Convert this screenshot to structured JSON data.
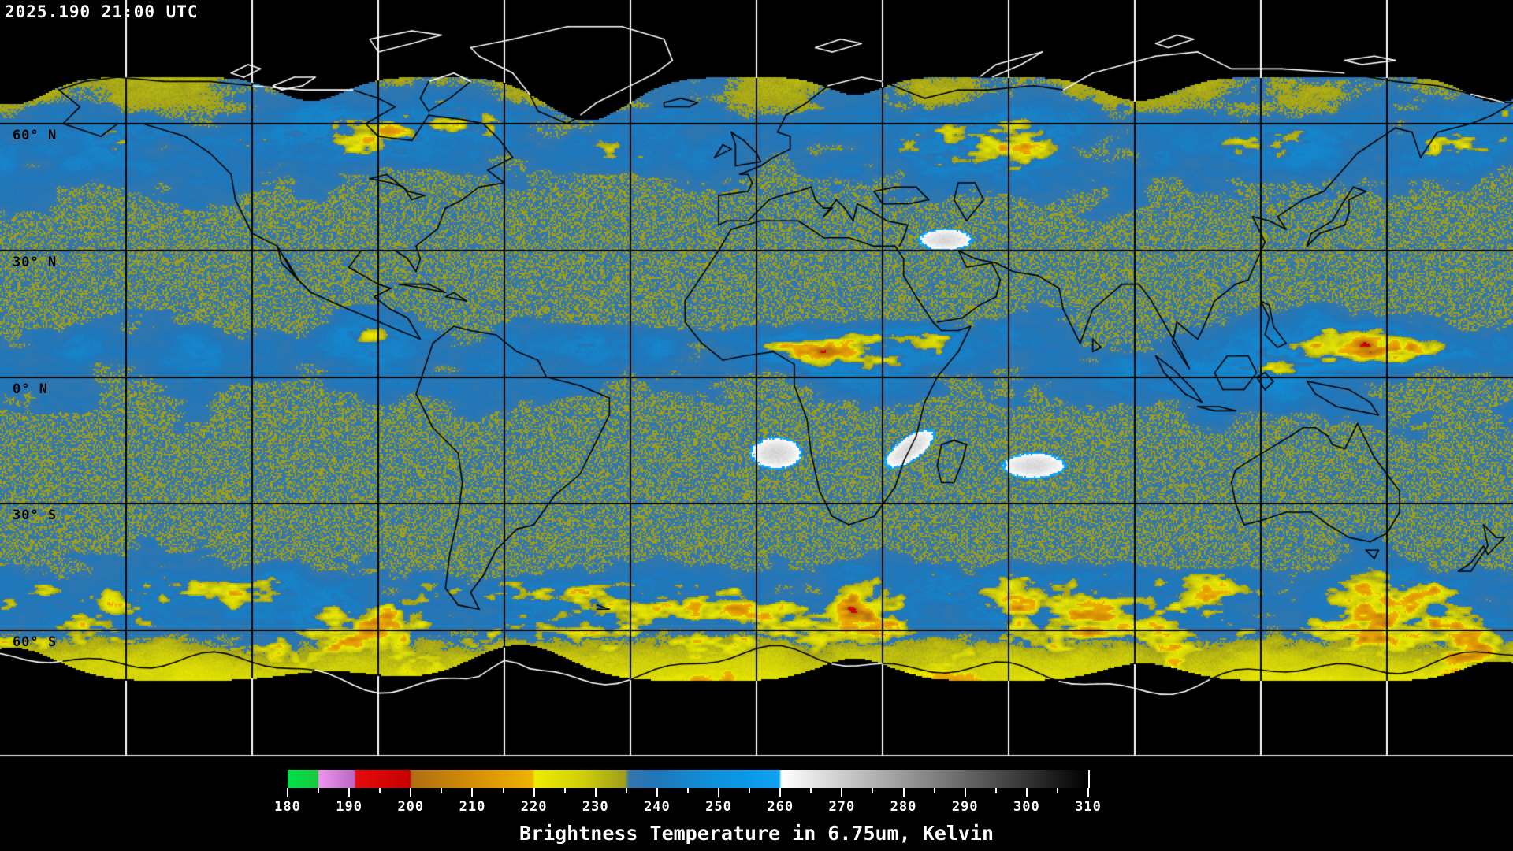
{
  "header": {
    "timestamp": "2025.190 21:00 UTC"
  },
  "map": {
    "type": "global-satellite-water-vapor-composite",
    "projection": "equirectangular",
    "grid_spacing_deg": 30,
    "lat_labels": [
      {
        "text": "60° N",
        "lat": 60
      },
      {
        "text": "30° N",
        "lat": 30
      },
      {
        "text": "0° N",
        "lat": 0
      },
      {
        "text": "30° S",
        "lat": -30
      },
      {
        "text": "60° S",
        "lat": -60
      }
    ],
    "colors": {
      "background": "#000000",
      "grid_over_data": "#000000",
      "grid_over_nodata": "#ffffff",
      "coast_over_data": "#000000",
      "coast_over_nodata": "#ffffff",
      "map_edge_line": "#d8d8d8"
    },
    "features": {
      "warm_white_patches_lonlat": [
        [
          4.7,
          -18
        ],
        [
          36.5,
          -17
        ],
        [
          66,
          -21
        ],
        [
          45,
          32.5
        ]
      ]
    }
  },
  "colorbar": {
    "title": "Brightness Temperature in 6.75um, Kelvin",
    "range_k": [
      180,
      310
    ],
    "major_ticks": [
      180,
      190,
      200,
      210,
      220,
      230,
      240,
      250,
      260,
      270,
      280,
      290,
      300,
      310
    ],
    "minor_tick_step_k": 5,
    "stops": [
      {
        "v": 180.0,
        "c": "#00E148"
      },
      {
        "v": 184.9,
        "c": "#19C83E"
      },
      {
        "v": 185.1,
        "c": "#EE94EE"
      },
      {
        "v": 190.8,
        "c": "#BA68C4"
      },
      {
        "v": 191.1,
        "c": "#E40C0C"
      },
      {
        "v": 199.8,
        "c": "#C60000"
      },
      {
        "v": 200.2,
        "c": "#B06E12"
      },
      {
        "v": 210.0,
        "c": "#D48E06"
      },
      {
        "v": 219.7,
        "c": "#F0B200"
      },
      {
        "v": 220.2,
        "c": "#ECEC00"
      },
      {
        "v": 228.0,
        "c": "#CECE0A"
      },
      {
        "v": 234.8,
        "c": "#9E9E1C"
      },
      {
        "v": 235.4,
        "c": "#3476AC"
      },
      {
        "v": 240.0,
        "c": "#2076B9"
      },
      {
        "v": 247.0,
        "c": "#118CD4"
      },
      {
        "v": 254.0,
        "c": "#0A98E6"
      },
      {
        "v": 259.8,
        "c": "#0EA2F2"
      },
      {
        "v": 260.2,
        "c": "#FFFFFF"
      },
      {
        "v": 310.0,
        "c": "#000000"
      }
    ]
  }
}
